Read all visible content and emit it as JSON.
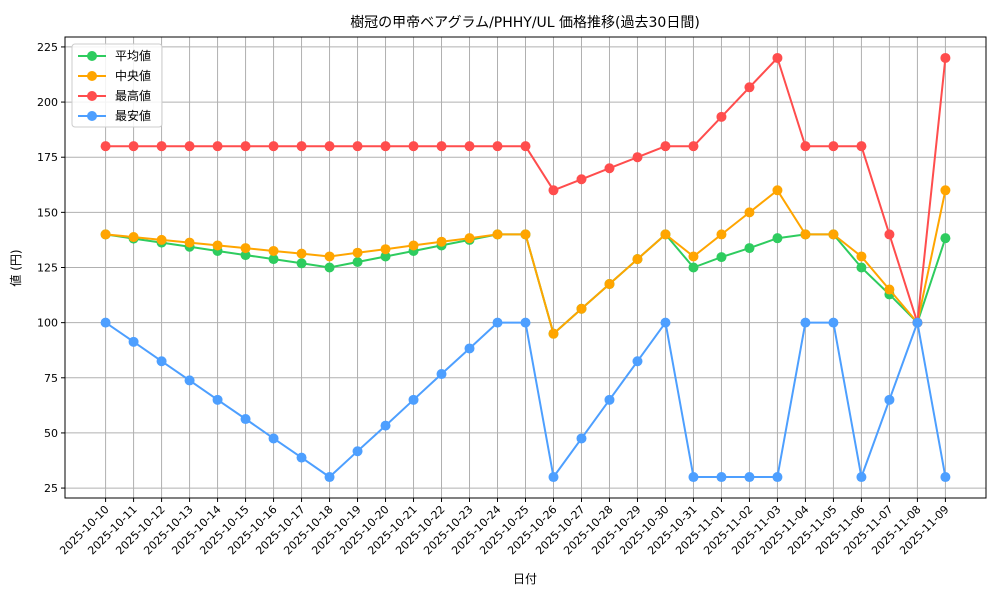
{
  "chart_data": {
    "type": "line",
    "title": "樹冠の甲帝ベアグラム/PHHY/UL 価格推移(過去30日間)",
    "xlabel": "日付",
    "ylabel": "値 (円)",
    "ylim": [
      20.5,
      229.5
    ],
    "yticks": [
      25,
      50,
      75,
      100,
      125,
      150,
      175,
      200,
      225
    ],
    "grid": true,
    "legend_position": "upper left",
    "x": [
      "2025-10-10",
      "2025-10-11",
      "2025-10-12",
      "2025-10-13",
      "2025-10-14",
      "2025-10-15",
      "2025-10-16",
      "2025-10-17",
      "2025-10-18",
      "2025-10-19",
      "2025-10-20",
      "2025-10-21",
      "2025-10-22",
      "2025-10-23",
      "2025-10-24",
      "2025-10-25",
      "2025-10-26",
      "2025-10-27",
      "2025-10-28",
      "2025-10-29",
      "2025-10-30",
      "2025-10-31",
      "2025-11-01",
      "2025-11-02",
      "2025-11-03",
      "2025-11-04",
      "2025-11-05",
      "2025-11-06",
      "2025-11-07",
      "2025-11-08",
      "2025-11-09"
    ],
    "series": [
      {
        "name": "平均値",
        "color": "#2ecc5f",
        "values": [
          140,
          138.1,
          136.3,
          134.4,
          132.5,
          130.6,
          128.8,
          126.9,
          125,
          127.5,
          130,
          132.5,
          135,
          137.5,
          140,
          140,
          95,
          106.3,
          117.5,
          128.8,
          140,
          125,
          129.7,
          133.8,
          138.3,
          140,
          140,
          125,
          112.8,
          100,
          138.3
        ]
      },
      {
        "name": "中央値",
        "color": "#ffa500",
        "values": [
          140,
          138.8,
          137.5,
          136.3,
          135,
          133.8,
          132.5,
          131.3,
          130,
          131.7,
          133.3,
          135,
          136.7,
          138.3,
          140,
          140,
          95,
          106.3,
          117.5,
          128.8,
          140,
          130,
          140,
          150,
          160,
          140,
          140,
          130,
          115,
          100,
          160
        ]
      },
      {
        "name": "最高値",
        "color": "#ff4d4d",
        "values": [
          180,
          180,
          180,
          180,
          180,
          180,
          180,
          180,
          180,
          180,
          180,
          180,
          180,
          180,
          180,
          180,
          160,
          165,
          170,
          175,
          180,
          180,
          193.3,
          206.7,
          220,
          180,
          180,
          180,
          140,
          100,
          220
        ]
      },
      {
        "name": "最安値",
        "color": "#4d9fff",
        "values": [
          100,
          91.3,
          82.5,
          73.8,
          65,
          56.3,
          47.5,
          38.8,
          30,
          41.7,
          53.3,
          65,
          76.7,
          88.3,
          100,
          100,
          30,
          47.5,
          65,
          82.5,
          100,
          30,
          30,
          30,
          30,
          100,
          100,
          30,
          65,
          100,
          30
        ]
      }
    ]
  },
  "layout_colors": {
    "grid": "#b0b0b0",
    "axis": "#000000",
    "legend_border": "#cccccc"
  }
}
